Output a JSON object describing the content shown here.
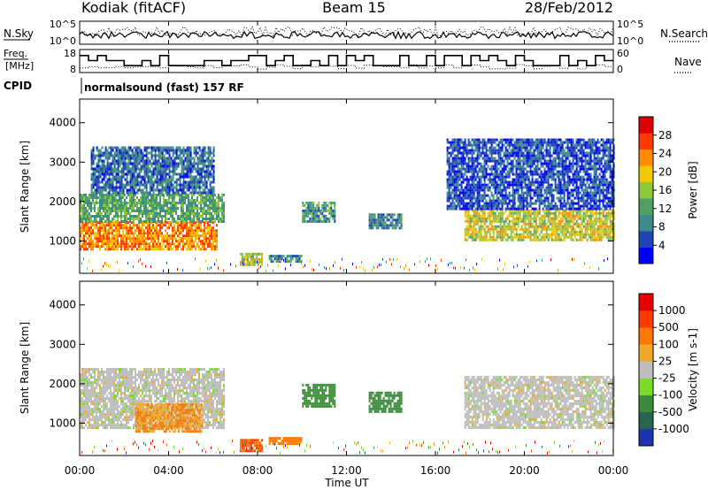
{
  "header": {
    "station": "Kodiak (fitACF)",
    "beam": "Beam 15",
    "date": "28/Feb/2012"
  },
  "sky_search": {
    "left_label": "N.Sky",
    "right_label": "N.Search",
    "left_ticks": [
      "10^5",
      "10^0"
    ],
    "right_ticks": [
      "10^5",
      "10^0"
    ]
  },
  "freq_nave": {
    "left_label_1": "Freq.",
    "left_label_2": "[MHz]",
    "right_label": "Nave",
    "left_ticks": [
      "18",
      "8"
    ],
    "right_ticks": [
      "60",
      "0"
    ]
  },
  "cpid": {
    "label": "CPID",
    "text": "normalsound (fast) 157 RF"
  },
  "panels": {
    "ylabel": "Slant Range [km]",
    "xlabel": "Time UT",
    "yticks": [
      "4000",
      "3000",
      "2000",
      "1000"
    ],
    "xticks": [
      "00:00",
      "04:00",
      "08:00",
      "12:00",
      "16:00",
      "20:00",
      "00:00"
    ]
  },
  "power_scale": {
    "label": "Power [dB]",
    "ticks": [
      "28",
      "24",
      "20",
      "16",
      "12",
      "8",
      "4"
    ],
    "colors": [
      "#0000ff",
      "#1e46b4",
      "#3c8c8c",
      "#50a064",
      "#8cc83c",
      "#f0c800",
      "#ff8c00",
      "#ff3c00",
      "#dc0000"
    ]
  },
  "velocity_scale": {
    "label": "Velocity [m s-1]",
    "ticks": [
      "1000",
      "500",
      "100",
      "25",
      "-25",
      "-100",
      "-500",
      "-1000"
    ],
    "colors": [
      "#1e32b4",
      "#286450",
      "#3c8c3c",
      "#78dc28",
      "#bebebe",
      "#f0aa28",
      "#ff7800",
      "#ff3c00",
      "#e60000"
    ]
  },
  "chart_data": {
    "type": "heatmap",
    "x_range_hours": [
      0,
      24
    ],
    "y_range_km": [
      180,
      4600
    ],
    "power_patches_db": [
      {
        "t0": 0.0,
        "t1": 6.2,
        "r0": 800,
        "r1": 1500,
        "value": 26
      },
      {
        "t0": 0.0,
        "t1": 6.5,
        "r0": 1500,
        "r1": 2200,
        "value": 14
      },
      {
        "t0": 0.5,
        "t1": 6.0,
        "r0": 2200,
        "r1": 3400,
        "value": 8
      },
      {
        "t0": 7.2,
        "t1": 8.2,
        "r0": 400,
        "r1": 700,
        "value": 20
      },
      {
        "t0": 8.5,
        "t1": 10.0,
        "r0": 450,
        "r1": 650,
        "value": 10
      },
      {
        "t0": 10.0,
        "t1": 11.5,
        "r0": 1500,
        "r1": 2000,
        "value": 12
      },
      {
        "t0": 13.0,
        "t1": 14.5,
        "r0": 1300,
        "r1": 1700,
        "value": 10
      },
      {
        "t0": 17.3,
        "t1": 24.0,
        "r0": 1000,
        "r1": 1800,
        "value": 20
      },
      {
        "t0": 16.5,
        "t1": 24.0,
        "r0": 1800,
        "r1": 3600,
        "value": 6
      }
    ],
    "velocity_patches_ms": [
      {
        "t0": 0.0,
        "t1": 6.5,
        "r0": 900,
        "r1": 2400,
        "value": 0
      },
      {
        "t0": 2.5,
        "t1": 5.5,
        "r0": 800,
        "r1": 1500,
        "value": 100
      },
      {
        "t0": 7.2,
        "t1": 8.2,
        "r0": 300,
        "r1": 600,
        "value": 500
      },
      {
        "t0": 8.5,
        "t1": 10.0,
        "r0": 450,
        "r1": 650,
        "value": 300
      },
      {
        "t0": 10.0,
        "t1": 11.5,
        "r0": 1400,
        "r1": 2000,
        "value": -300
      },
      {
        "t0": 13.0,
        "t1": 14.5,
        "r0": 1300,
        "r1": 1800,
        "value": -300
      },
      {
        "t0": 17.3,
        "t1": 24.0,
        "r0": 900,
        "r1": 2200,
        "value": 0
      }
    ]
  }
}
